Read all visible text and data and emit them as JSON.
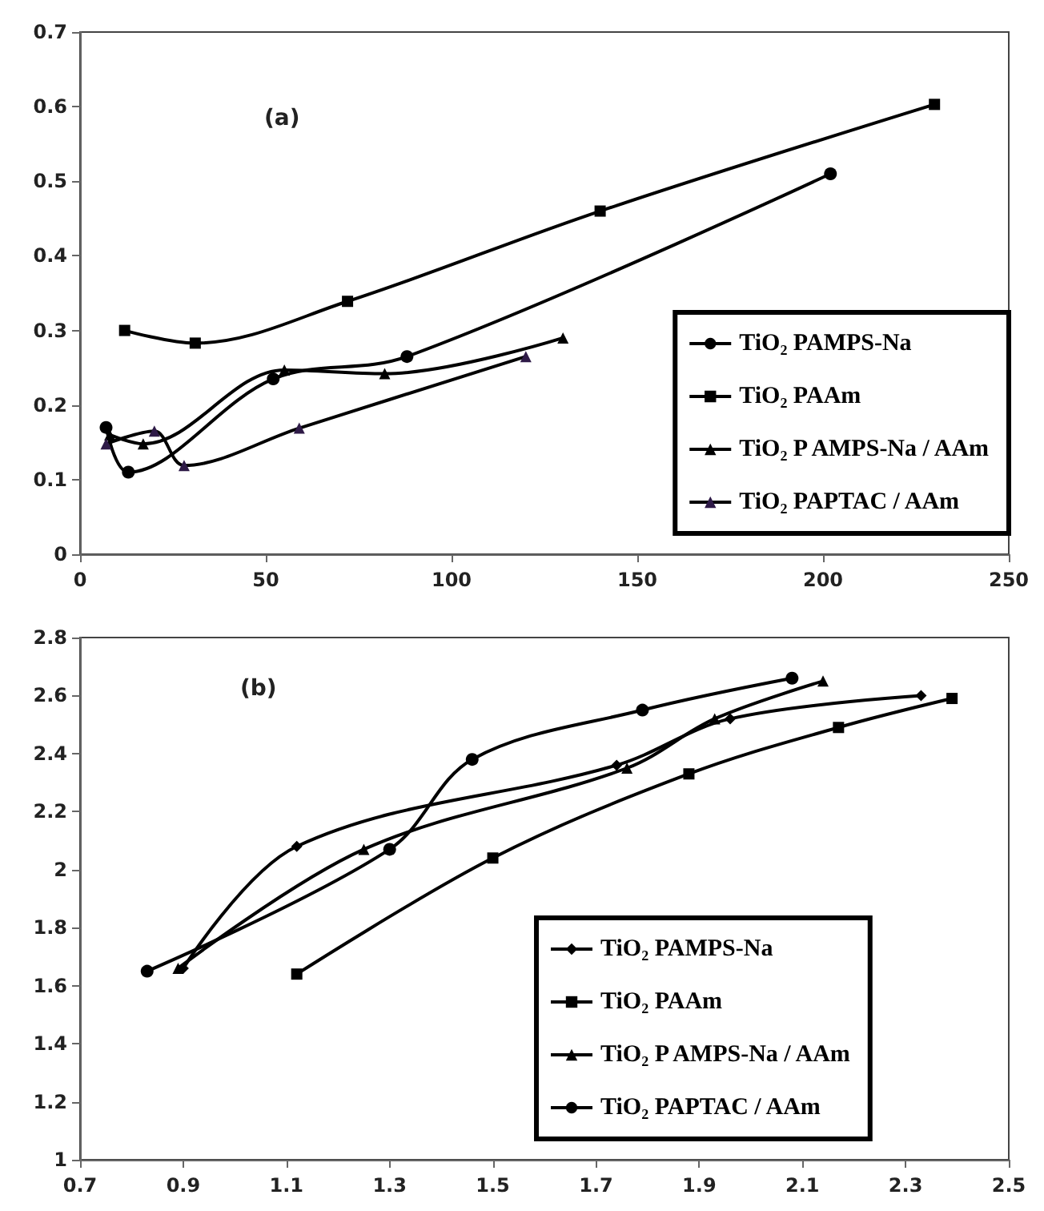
{
  "chart_data": [
    {
      "type": "line",
      "title": "(a)",
      "series": [
        {
          "name": "TiO₂ PAMPS-Na",
          "color": "#000000",
          "marker": "circle",
          "x": [
            7,
            13,
            52,
            88,
            202
          ],
          "values": [
            0.17,
            0.11,
            0.235,
            0.265,
            0.51
          ]
        },
        {
          "name": "TiO₂ PAAm",
          "color": "#000000",
          "marker": "square",
          "x": [
            12,
            31,
            72,
            140,
            230
          ],
          "values": [
            0.3,
            0.283,
            0.339,
            0.46,
            0.603
          ]
        },
        {
          "name": "TiO₂ P AMPS-Na / AAm",
          "color": "#000000",
          "marker": "triangle",
          "x": [
            8,
            17,
            55,
            82,
            130
          ],
          "values": [
            0.16,
            0.148,
            0.247,
            0.242,
            0.29
          ]
        },
        {
          "name": "TiO₂ PAPTAC / AAm",
          "color": "#2e1a47",
          "marker": "triangle",
          "x": [
            7,
            20,
            28,
            59,
            120
          ],
          "values": [
            0.148,
            0.165,
            0.119,
            0.169,
            0.265
          ]
        }
      ],
      "xlim": [
        0,
        250
      ],
      "xticks": [
        0,
        50,
        100,
        150,
        200,
        250
      ],
      "ylim": [
        0,
        0.7
      ],
      "yticks": [
        0,
        0.1,
        0.2,
        0.3,
        0.4,
        0.5,
        0.6,
        0.7
      ],
      "grid": false,
      "legend": "bottom right"
    },
    {
      "type": "line",
      "title": "(b)",
      "series": [
        {
          "name": "TiO₂ PAMPS-Na",
          "color": "#000000",
          "marker": "diamond",
          "x": [
            0.9,
            1.12,
            1.74,
            1.96,
            2.33
          ],
          "values": [
            1.66,
            2.08,
            2.36,
            2.52,
            2.6
          ]
        },
        {
          "name": "TiO₂ PAAm",
          "color": "#000000",
          "marker": "square",
          "x": [
            1.12,
            1.5,
            1.88,
            2.17,
            2.39
          ],
          "values": [
            1.64,
            2.04,
            2.33,
            2.49,
            2.59
          ]
        },
        {
          "name": "TiO₂ P AMPS-Na / AAm",
          "color": "#000000",
          "marker": "triangle",
          "x": [
            0.89,
            1.25,
            1.76,
            1.93,
            2.14
          ],
          "values": [
            1.66,
            2.07,
            2.35,
            2.52,
            2.65
          ]
        },
        {
          "name": "TiO₂ PAPTAC / AAm",
          "color": "#000000",
          "marker": "circle",
          "x": [
            0.83,
            1.3,
            1.46,
            1.79,
            2.08
          ],
          "values": [
            1.65,
            2.07,
            2.38,
            2.55,
            2.66
          ]
        }
      ],
      "xlim": [
        0.7,
        2.5
      ],
      "xticks": [
        0.7,
        0.9,
        1.1,
        1.3,
        1.5,
        1.7,
        1.9,
        2.1,
        2.3,
        2.5
      ],
      "ylim": [
        1,
        2.8
      ],
      "yticks": [
        1,
        1.2,
        1.4,
        1.6,
        1.8,
        2,
        2.2,
        2.4,
        2.6,
        2.8
      ],
      "grid": false,
      "legend": "bottom"
    }
  ]
}
